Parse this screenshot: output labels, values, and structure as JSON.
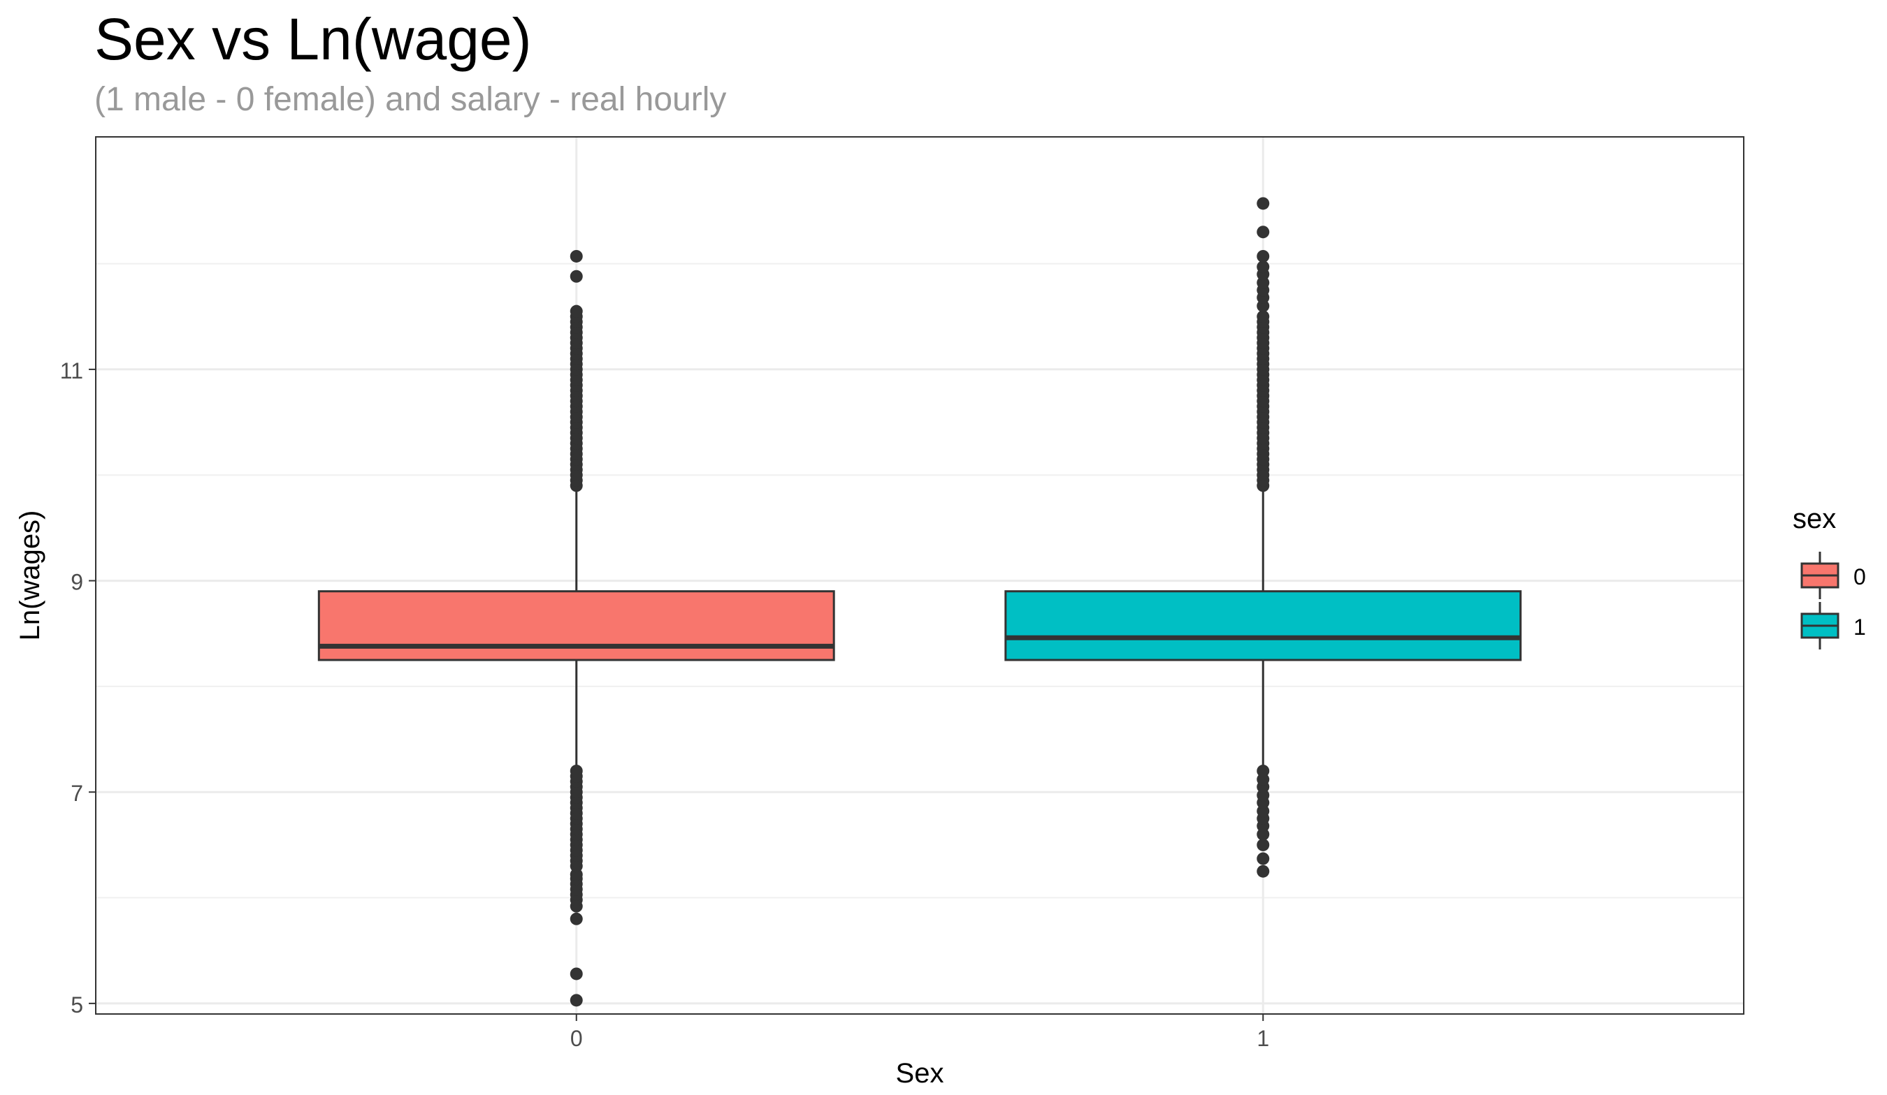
{
  "chart_data": {
    "type": "box",
    "title": "Sex vs Ln(wage)",
    "subtitle": "(1 male - 0 female) and salary - real hourly",
    "xlabel": "Sex",
    "ylabel": "Ln(wages)",
    "categories": [
      "0",
      "1"
    ],
    "ylim": [
      4.9,
      13.2
    ],
    "yticks": [
      5,
      7,
      9,
      11
    ],
    "grid": true,
    "legend": {
      "title": "sex",
      "position": "right",
      "entries": [
        "0",
        "1"
      ]
    },
    "boxes": [
      {
        "category": "0",
        "fill": "#F8766D",
        "q1": 8.25,
        "median": 8.38,
        "q3": 8.9,
        "whisker_low": 7.25,
        "whisker_high": 9.85,
        "outliers": [
          5.03,
          5.28,
          5.8,
          5.92,
          5.98,
          6.03,
          6.08,
          6.13,
          6.18,
          6.22,
          6.3,
          6.35,
          6.4,
          6.45,
          6.5,
          6.55,
          6.6,
          6.65,
          6.7,
          6.75,
          6.8,
          6.85,
          6.9,
          6.95,
          7.0,
          7.05,
          7.1,
          7.15,
          7.2,
          9.9,
          9.95,
          10.0,
          10.05,
          10.1,
          10.15,
          10.2,
          10.25,
          10.3,
          10.35,
          10.4,
          10.45,
          10.5,
          10.55,
          10.6,
          10.65,
          10.7,
          10.75,
          10.8,
          10.85,
          10.9,
          10.95,
          11.0,
          11.05,
          11.1,
          11.15,
          11.2,
          11.25,
          11.3,
          11.35,
          11.4,
          11.45,
          11.5,
          11.55,
          11.88,
          12.07
        ]
      },
      {
        "category": "1",
        "fill": "#00BFC4",
        "q1": 8.25,
        "median": 8.46,
        "q3": 8.9,
        "whisker_low": 7.25,
        "whisker_high": 9.85,
        "outliers": [
          6.25,
          6.37,
          6.5,
          6.6,
          6.68,
          6.75,
          6.82,
          6.9,
          6.97,
          7.05,
          7.12,
          7.2,
          9.9,
          9.95,
          10.0,
          10.05,
          10.1,
          10.15,
          10.2,
          10.25,
          10.3,
          10.35,
          10.4,
          10.45,
          10.5,
          10.55,
          10.6,
          10.65,
          10.7,
          10.75,
          10.8,
          10.85,
          10.9,
          10.95,
          11.0,
          11.05,
          11.1,
          11.15,
          11.2,
          11.25,
          11.3,
          11.35,
          11.4,
          11.45,
          11.5,
          11.6,
          11.68,
          11.75,
          11.82,
          11.9,
          11.97,
          12.07,
          12.3,
          12.57
        ]
      }
    ]
  }
}
